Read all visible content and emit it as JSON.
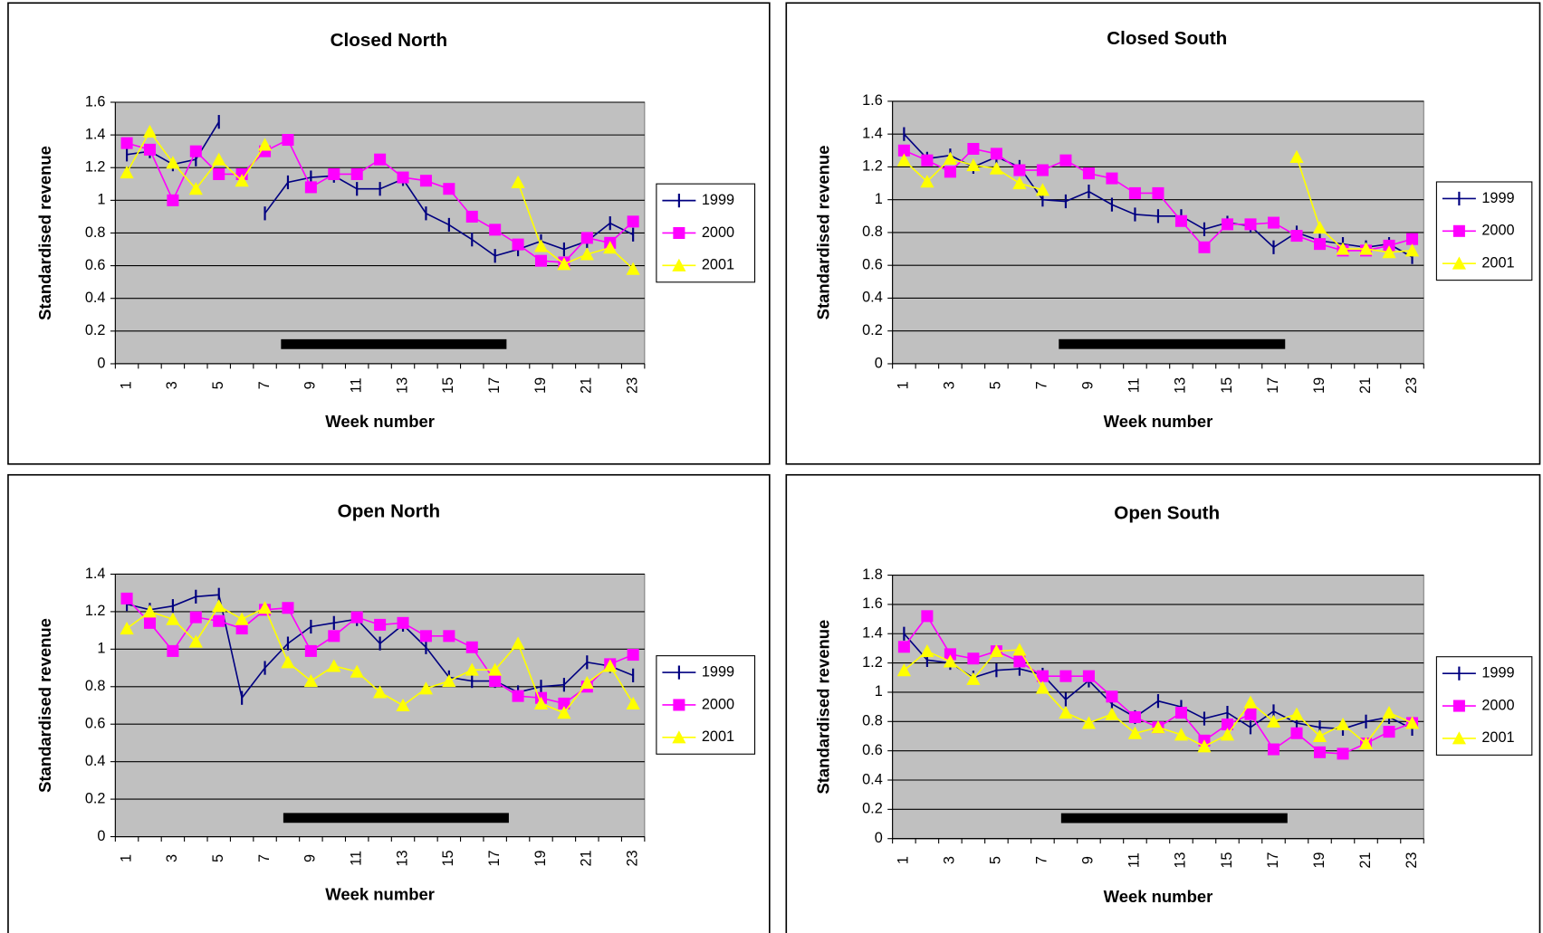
{
  "chart_data": [
    {
      "type": "line",
      "title": "Closed North",
      "xlabel": "Week number",
      "ylabel": "Standardised revenue",
      "categories": [
        1,
        null,
        3,
        null,
        5,
        null,
        7,
        null,
        9,
        null,
        11,
        null,
        13,
        null,
        15,
        null,
        17,
        null,
        19,
        null,
        21,
        null,
        23
      ],
      "ylim": [
        0,
        1.6
      ],
      "yticks": [
        0,
        0.2,
        0.4,
        0.6,
        0.8,
        1,
        1.2,
        1.4,
        1.6
      ],
      "grid": true,
      "legend": "right",
      "shaded_period": {
        "start": 7.7,
        "end": 17.5,
        "level": 0.12
      },
      "series": [
        {
          "name": "1999",
          "color": "#000080",
          "marker": "dash",
          "values": [
            1.28,
            1.3,
            1.22,
            1.25,
            1.48,
            null,
            0.92,
            1.11,
            1.14,
            1.15,
            1.07,
            1.07,
            1.13,
            0.92,
            0.85,
            0.76,
            0.66,
            0.7,
            0.75,
            0.7,
            0.75,
            0.86,
            0.79
          ]
        },
        {
          "name": "2000",
          "color": "#ff00ff",
          "marker": "square",
          "values": [
            1.35,
            1.31,
            1.0,
            1.3,
            1.16,
            1.16,
            1.3,
            1.37,
            1.08,
            1.16,
            1.16,
            1.25,
            1.14,
            1.12,
            1.07,
            0.9,
            0.82,
            0.73,
            0.63,
            0.62,
            0.77,
            0.74,
            0.87
          ]
        },
        {
          "name": "2001",
          "color": "#ffff00",
          "marker": "triangle",
          "values": [
            1.17,
            1.42,
            1.23,
            1.07,
            1.25,
            1.12,
            1.34,
            null,
            null,
            null,
            null,
            null,
            null,
            null,
            null,
            null,
            null,
            1.11,
            0.72,
            0.61,
            0.67,
            0.71,
            0.58
          ]
        }
      ]
    },
    {
      "type": "line",
      "title": "Closed South",
      "xlabel": "Week number",
      "ylabel": "Standardised revenue",
      "categories": [
        1,
        null,
        3,
        null,
        5,
        null,
        7,
        null,
        9,
        null,
        11,
        null,
        13,
        null,
        15,
        null,
        17,
        null,
        19,
        null,
        21,
        null,
        23
      ],
      "ylim": [
        0,
        1.6
      ],
      "yticks": [
        0,
        0.2,
        0.4,
        0.6,
        0.8,
        1,
        1.2,
        1.4,
        1.6
      ],
      "grid": true,
      "legend": "right",
      "shaded_period": {
        "start": 7.7,
        "end": 17.5,
        "level": 0.12
      },
      "series": [
        {
          "name": "1999",
          "color": "#000080",
          "marker": "dash",
          "values": [
            1.4,
            1.25,
            1.27,
            1.2,
            1.26,
            1.2,
            1.0,
            0.99,
            1.05,
            0.97,
            0.91,
            0.9,
            0.9,
            0.82,
            0.86,
            0.84,
            0.71,
            0.8,
            0.75,
            0.73,
            0.71,
            0.73,
            0.65
          ]
        },
        {
          "name": "2000",
          "color": "#ff00ff",
          "marker": "square",
          "values": [
            1.3,
            1.24,
            1.17,
            1.31,
            1.28,
            1.18,
            1.18,
            1.24,
            1.16,
            1.13,
            1.04,
            1.04,
            0.87,
            0.71,
            0.85,
            0.85,
            0.86,
            0.78,
            0.73,
            0.69,
            0.69,
            0.72,
            0.76
          ]
        },
        {
          "name": "2001",
          "color": "#ffff00",
          "marker": "triangle",
          "values": [
            1.24,
            1.11,
            1.25,
            1.21,
            1.19,
            1.1,
            1.06,
            null,
            null,
            null,
            null,
            null,
            null,
            null,
            null,
            null,
            null,
            1.26,
            0.83,
            0.7,
            0.7,
            0.68,
            0.69
          ]
        }
      ]
    },
    {
      "type": "line",
      "title": "Open North",
      "xlabel": "Week number",
      "ylabel": "Standardised revenue",
      "categories": [
        1,
        null,
        3,
        null,
        5,
        null,
        7,
        null,
        9,
        null,
        11,
        null,
        13,
        null,
        15,
        null,
        17,
        null,
        19,
        null,
        21,
        null,
        23
      ],
      "ylim": [
        0,
        1.4
      ],
      "yticks": [
        0,
        0.2,
        0.4,
        0.6,
        0.8,
        1,
        1.2,
        1.4
      ],
      "grid": true,
      "legend": "right",
      "shaded_period": {
        "start": 7.8,
        "end": 17.6,
        "level": 0.1
      },
      "series": [
        {
          "name": "1999",
          "color": "#000080",
          "marker": "dash",
          "values": [
            1.24,
            1.21,
            1.23,
            1.28,
            1.29,
            0.74,
            0.9,
            1.03,
            1.12,
            1.14,
            1.16,
            1.03,
            1.13,
            1.01,
            0.85,
            0.83,
            0.83,
            0.77,
            0.8,
            0.81,
            0.93,
            0.91,
            0.86
          ]
        },
        {
          "name": "2000",
          "color": "#ff00ff",
          "marker": "square",
          "values": [
            1.27,
            1.14,
            0.99,
            1.17,
            1.15,
            1.11,
            1.21,
            1.22,
            0.99,
            1.07,
            1.17,
            1.13,
            1.14,
            1.07,
            1.07,
            1.01,
            0.83,
            0.75,
            0.74,
            0.71,
            0.8,
            0.92,
            0.97
          ]
        },
        {
          "name": "2001",
          "color": "#ffff00",
          "marker": "triangle",
          "values": [
            1.11,
            1.2,
            1.16,
            1.04,
            1.23,
            1.16,
            1.22,
            0.93,
            0.83,
            0.91,
            0.88,
            0.77,
            0.7,
            0.79,
            0.83,
            0.89,
            0.89,
            1.03,
            0.71,
            0.66,
            0.82,
            0.91,
            0.71
          ]
        }
      ]
    },
    {
      "type": "line",
      "title": "Open South",
      "xlabel": "Week number",
      "ylabel": "Standardised revenue",
      "categories": [
        1,
        null,
        3,
        null,
        5,
        null,
        7,
        null,
        9,
        null,
        11,
        null,
        13,
        null,
        15,
        null,
        17,
        null,
        19,
        null,
        21,
        null,
        23
      ],
      "ylim": [
        0,
        1.8
      ],
      "yticks": [
        0,
        0.2,
        0.4,
        0.6,
        0.8,
        1,
        1.2,
        1.4,
        1.6,
        1.8
      ],
      "grid": true,
      "legend": "right",
      "shaded_period": {
        "start": 7.8,
        "end": 17.6,
        "level": 0.14
      },
      "series": [
        {
          "name": "1999",
          "color": "#000080",
          "marker": "dash",
          "values": [
            1.4,
            1.22,
            1.2,
            1.1,
            1.15,
            1.16,
            1.12,
            0.95,
            1.08,
            0.92,
            0.83,
            0.94,
            0.9,
            0.82,
            0.86,
            0.76,
            0.87,
            0.79,
            0.76,
            0.75,
            0.8,
            0.83,
            0.75
          ]
        },
        {
          "name": "2000",
          "color": "#ff00ff",
          "marker": "square",
          "values": [
            1.31,
            1.52,
            1.26,
            1.23,
            1.28,
            1.21,
            1.11,
            1.11,
            1.11,
            0.97,
            0.83,
            0.76,
            0.86,
            0.67,
            0.78,
            0.85,
            0.61,
            0.72,
            0.59,
            0.58,
            0.65,
            0.73,
            0.79
          ]
        },
        {
          "name": "2001",
          "color": "#ffff00",
          "marker": "triangle",
          "values": [
            1.15,
            1.28,
            1.21,
            1.09,
            1.28,
            1.29,
            1.03,
            0.86,
            0.79,
            0.85,
            0.72,
            0.76,
            0.71,
            0.63,
            0.71,
            0.93,
            0.8,
            0.85,
            0.7,
            0.78,
            0.65,
            0.86,
            0.79
          ]
        }
      ]
    }
  ]
}
